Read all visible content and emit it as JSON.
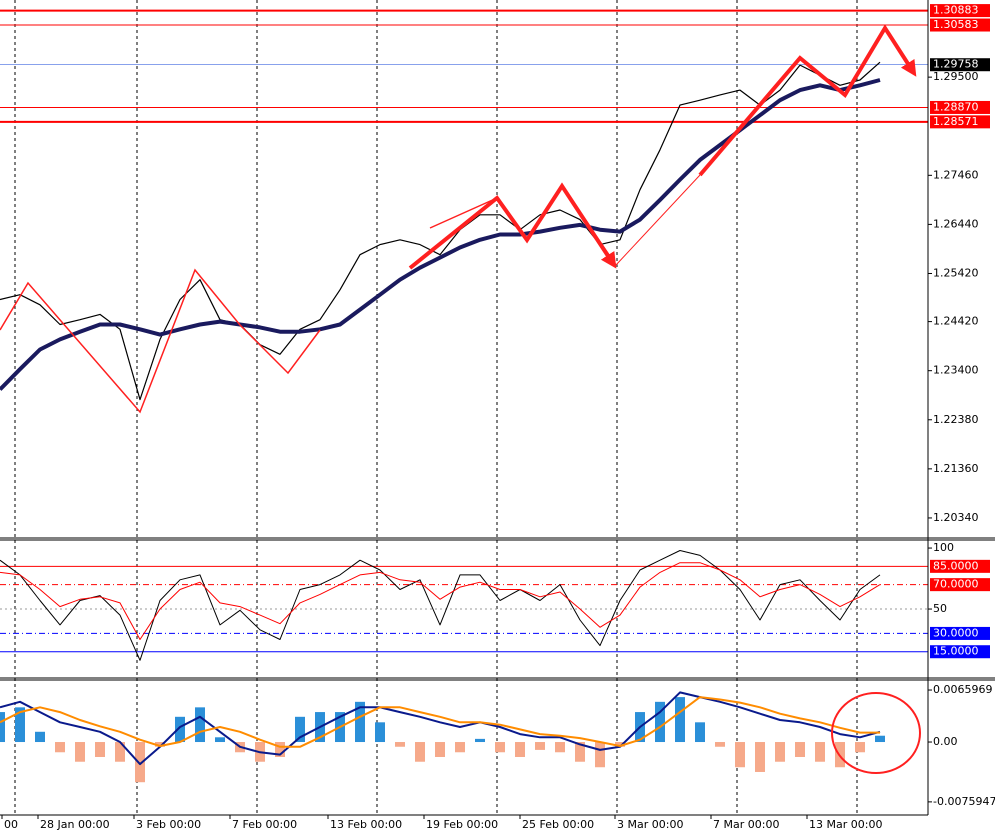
{
  "chart_data": [
    {
      "type": "line",
      "x": [
        0,
        1,
        2,
        3,
        4,
        5,
        6,
        7,
        8,
        9,
        10,
        11,
        12,
        13,
        14,
        15,
        16,
        17,
        18,
        19,
        20,
        21,
        22,
        23,
        24,
        25,
        26,
        27,
        28,
        29,
        30,
        31,
        32,
        33,
        34,
        35,
        36,
        37,
        38,
        39,
        40,
        41,
        42,
        43,
        44
      ],
      "xlim": [
        0,
        46.4
      ],
      "ylim": [
        1.19944,
        1.31103
      ],
      "yticks": [
        {
          "value": 1.2034,
          "label": "1.20340"
        },
        {
          "value": 1.2136,
          "label": "1.21360"
        },
        {
          "value": 1.2238,
          "label": "1.22380"
        },
        {
          "value": 1.234,
          "label": "1.23400"
        },
        {
          "value": 1.2442,
          "label": "1.24420"
        },
        {
          "value": 1.2542,
          "label": "1.25420"
        },
        {
          "value": 1.2644,
          "label": "1.26440"
        },
        {
          "value": 1.2746,
          "label": "1.27460"
        },
        {
          "value": 1.295,
          "label": "1.29500"
        }
      ],
      "series": [
        {
          "color": "#000000",
          "width": 1.2,
          "values": [
            1.2488,
            1.2498,
            1.2477,
            1.2436,
            1.2446,
            1.2457,
            1.2426,
            1.228,
            1.2405,
            1.2488,
            1.2529,
            1.2446,
            1.2436,
            1.2394,
            1.2374,
            1.2426,
            1.2446,
            1.2508,
            1.2581,
            1.2602,
            1.2612,
            1.2602,
            1.2581,
            1.2633,
            1.2664,
            1.2664,
            1.2633,
            1.2664,
            1.2674,
            1.2654,
            1.2602,
            1.2612,
            1.2716,
            1.2799,
            1.2892,
            1.2902,
            1.2913,
            1.2923,
            1.2892,
            1.2923,
            1.2975,
            1.2954,
            1.2933,
            1.2944,
            1.2981
          ]
        },
        {
          "color": "#1a1a5e",
          "width": 4,
          "values": [
            1.2301,
            1.2343,
            1.2384,
            1.2405,
            1.2421,
            1.2436,
            1.2436,
            1.2426,
            1.2415,
            1.2426,
            1.2436,
            1.2442,
            1.2436,
            1.243,
            1.2421,
            1.2421,
            1.2426,
            1.2436,
            1.2467,
            1.2498,
            1.2529,
            1.2554,
            1.2575,
            1.2596,
            1.2612,
            1.2623,
            1.2623,
            1.2629,
            1.2637,
            1.2643,
            1.2633,
            1.2629,
            1.2654,
            1.2695,
            1.2737,
            1.2778,
            1.2809,
            1.284,
            1.2871,
            1.2902,
            1.2923,
            1.2933,
            1.2923,
            1.2933,
            1.2944
          ]
        }
      ],
      "levels": [
        {
          "value": 1.30883,
          "color": "#ff0000",
          "width": 2,
          "label_bg": "#ff0000"
        },
        {
          "value": 1.30583,
          "color": "#ff0000",
          "width": 1,
          "label_bg": "#ff0000"
        },
        {
          "value": 1.29758,
          "color": "#4169e1",
          "width": 0.6,
          "label_bg": "#000000"
        },
        {
          "value": 1.2887,
          "label": "1.28870",
          "color": "#ff0000",
          "width": 1,
          "label_bg": "#ff0000"
        },
        {
          "value": 1.28571,
          "color": "#ff0000",
          "width": 2,
          "label_bg": "#ff0000"
        }
      ]
    },
    {
      "type": "line",
      "x": [
        0,
        1,
        2,
        3,
        4,
        5,
        6,
        7,
        8,
        9,
        10,
        11,
        12,
        13,
        14,
        15,
        16,
        17,
        18,
        19,
        20,
        21,
        22,
        23,
        24,
        25,
        26,
        27,
        28,
        29,
        30,
        31,
        32,
        33,
        34,
        35,
        36,
        37,
        38,
        39,
        40,
        41,
        42,
        43,
        44
      ],
      "xlim": [
        0,
        46.4
      ],
      "ylim": [
        -4.9,
        106.6
      ],
      "yticks": [
        100,
        50
      ],
      "series": [
        {
          "color": "#000000",
          "width": 1,
          "values": [
            90,
            78,
            57,
            37,
            57,
            61,
            45,
            8,
            57,
            74,
            78,
            37,
            49,
            33,
            25,
            66,
            70,
            78,
            90,
            82,
            66,
            74,
            37,
            78,
            78,
            57,
            66,
            57,
            70,
            41,
            20,
            57,
            82,
            90,
            98,
            94,
            82,
            66,
            41,
            70,
            74,
            57,
            41,
            66,
            78
          ]
        },
        {
          "color": "#ff0000",
          "width": 1,
          "values": [
            80,
            78,
            66,
            52,
            58,
            60,
            55,
            25,
            50,
            66,
            72,
            55,
            52,
            45,
            38,
            55,
            62,
            70,
            78,
            80,
            74,
            72,
            58,
            68,
            72,
            66,
            66,
            60,
            64,
            50,
            35,
            45,
            68,
            80,
            88,
            88,
            82,
            74,
            60,
            66,
            70,
            62,
            52,
            60,
            70
          ]
        }
      ],
      "levels": [
        {
          "value": 85,
          "label": "85.0000",
          "color": "#ff0000",
          "width": 1,
          "dash": "solid",
          "label_bg": "#ff0000"
        },
        {
          "value": 70,
          "label": "70.0000",
          "color": "#ff0000",
          "width": 1,
          "dash": "dashdot",
          "label_bg": "#ff0000"
        },
        {
          "value": 50,
          "color": "#999999",
          "width": 1,
          "dash": "dotted",
          "show_label": false
        },
        {
          "value": 30,
          "label": "30.0000",
          "color": "#0000ff",
          "width": 1,
          "dash": "dashdot",
          "label_bg": "#0000ff"
        },
        {
          "value": 15,
          "label": "15.0000",
          "color": "#0000ff",
          "width": 1,
          "dash": "solid",
          "label_bg": "#0000ff"
        }
      ]
    },
    {
      "type": "bar",
      "x": [
        0,
        1,
        2,
        3,
        4,
        5,
        6,
        7,
        8,
        9,
        10,
        11,
        12,
        13,
        14,
        15,
        16,
        17,
        18,
        19,
        20,
        21,
        22,
        23,
        24,
        25,
        26,
        27,
        28,
        29,
        30,
        31,
        32,
        33,
        34,
        35,
        36,
        37,
        38,
        39,
        40,
        41,
        42,
        43,
        44
      ],
      "xlim": [
        0,
        46.4
      ],
      "ylim": [
        -0.00926,
        0.00787
      ],
      "yticks": [
        0.0065969,
        {
          "value": 0,
          "label": "0.00"
        },
        -0.0075947
      ],
      "xticks": [
        {
          "value": 0.1,
          "label": "00"
        },
        {
          "value": 1.9,
          "label": "28 Jan 00:00"
        },
        {
          "value": 6.7,
          "label": "3 Feb 00:00"
        },
        {
          "value": 11.5,
          "label": "7 Feb 00:00"
        },
        {
          "value": 16.4,
          "label": "13 Feb 00:00"
        },
        {
          "value": 21.2,
          "label": "19 Feb 00:00"
        },
        {
          "value": 26,
          "label": "25 Feb 00:00"
        },
        {
          "value": 30.75,
          "label": "3 Mar 00:00"
        },
        {
          "value": 35.55,
          "label": "7 Mar 00:00"
        },
        {
          "value": 40.35,
          "label": "13 Mar 00:00"
        }
      ],
      "series": [
        {
          "type": "bar",
          "color": "#2b8fd8",
          "negative_color": "#f6a98a",
          "values": [
            0.0038,
            0.0044,
            0.0013,
            -0.0013,
            -0.0025,
            -0.0019,
            -0.0025,
            -0.0051,
            -0.0006,
            0.0032,
            0.0044,
            0.0006,
            -0.0013,
            -0.0025,
            -0.0019,
            0.0032,
            0.0038,
            0.0038,
            0.0051,
            0.0025,
            -0.0006,
            -0.0025,
            -0.0019,
            -0.0013,
            0.0004,
            -0.0013,
            -0.0019,
            -0.001,
            -0.0013,
            -0.0025,
            -0.0032,
            -0.0006,
            0.0038,
            0.0051,
            0.0057,
            0.0025,
            -0.0006,
            -0.0032,
            -0.0038,
            -0.0025,
            -0.0019,
            -0.0025,
            -0.0032,
            -0.0013,
            0.0008
          ]
        },
        {
          "type": "line",
          "color": "#0a1a8c",
          "width": 2,
          "values": [
            0.0044,
            0.0051,
            0.0038,
            0.0025,
            0.0019,
            0.0013,
            0,
            -0.0028,
            -0.0006,
            0.0019,
            0.0032,
            0.0013,
            -0.0006,
            -0.0013,
            -0.0016,
            0.0006,
            0.0019,
            0.0032,
            0.0044,
            0.0044,
            0.0038,
            0.0032,
            0.0025,
            0.0019,
            0.0025,
            0.0019,
            0.001,
            0.0006,
            0.0006,
            -0.0003,
            -0.001,
            -0.0006,
            0.0019,
            0.0038,
            0.0063,
            0.0057,
            0.0051,
            0.0044,
            0.0036,
            0.0028,
            0.0025,
            0.0019,
            0.001,
            0.0006,
            0.0013
          ]
        },
        {
          "type": "line",
          "color": "#ff8c00",
          "width": 2,
          "values": [
            0.0025,
            0.0038,
            0.0044,
            0.0038,
            0.0028,
            0.002,
            0.0013,
            0.0003,
            -0.0005,
            0,
            0.0013,
            0.0019,
            0.0013,
            0.0003,
            -0.0006,
            -0.0006,
            0.0006,
            0.0019,
            0.0032,
            0.0044,
            0.0044,
            0.0038,
            0.0032,
            0.0025,
            0.0025,
            0.0022,
            0.0016,
            0.001,
            0.0008,
            0.0005,
            0,
            -0.0005,
            0.0003,
            0.0019,
            0.0038,
            0.0057,
            0.0054,
            0.005,
            0.0044,
            0.0036,
            0.003,
            0.0025,
            0.0018,
            0.0012,
            0.0012
          ]
        }
      ]
    }
  ]
}
